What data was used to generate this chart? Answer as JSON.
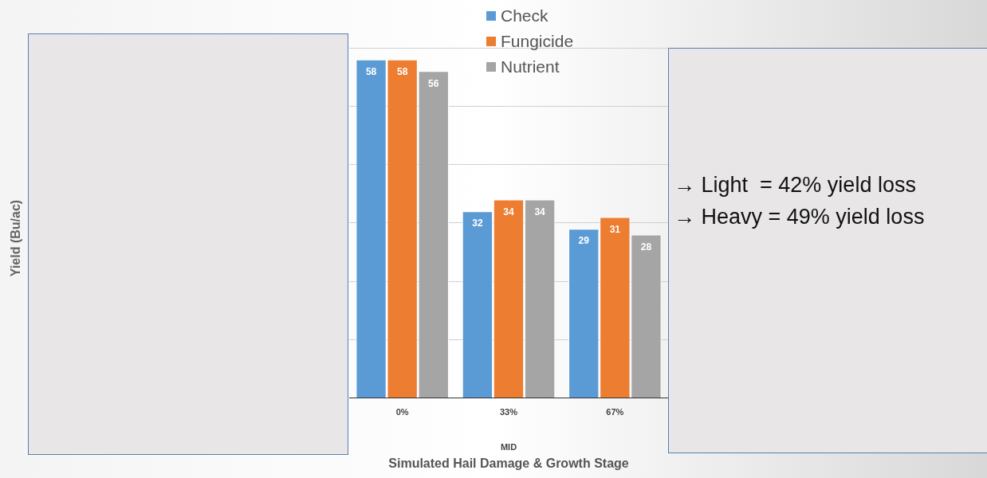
{
  "chart_data": {
    "type": "bar",
    "xlabel": "Simulated Hail Damage & Growth Stage",
    "categories": [
      "0%",
      "33%",
      "67%"
    ],
    "series": [
      {
        "name": "Check",
        "color": "#5b9bd5",
        "values": [
          58,
          32,
          29
        ]
      },
      {
        "name": "Fungicide",
        "color": "#ed7d31",
        "values": [
          58,
          34,
          31
        ]
      },
      {
        "name": "Nutrient",
        "color": "#a5a5a5",
        "values": [
          56,
          34,
          28
        ]
      }
    ],
    "ylim": [
      0,
      60
    ],
    "yticks": [
      {
        "value": 0,
        "label": null
      },
      {
        "value": 10,
        "label": null
      },
      {
        "value": 20,
        "label": null
      },
      {
        "value": 30,
        "label": null
      },
      {
        "value": 40,
        "label": null
      },
      {
        "value": 50,
        "label": null
      },
      {
        "value": 60,
        "label": null
      }
    ],
    "grid": "y",
    "legend": "top",
    "data_labels": true,
    "annotations": [
      "Yield (Bu/ac)",
      "MID",
      "→ Light  = 42% yield loss",
      "→ Heavy = 49% yield loss"
    ]
  }
}
